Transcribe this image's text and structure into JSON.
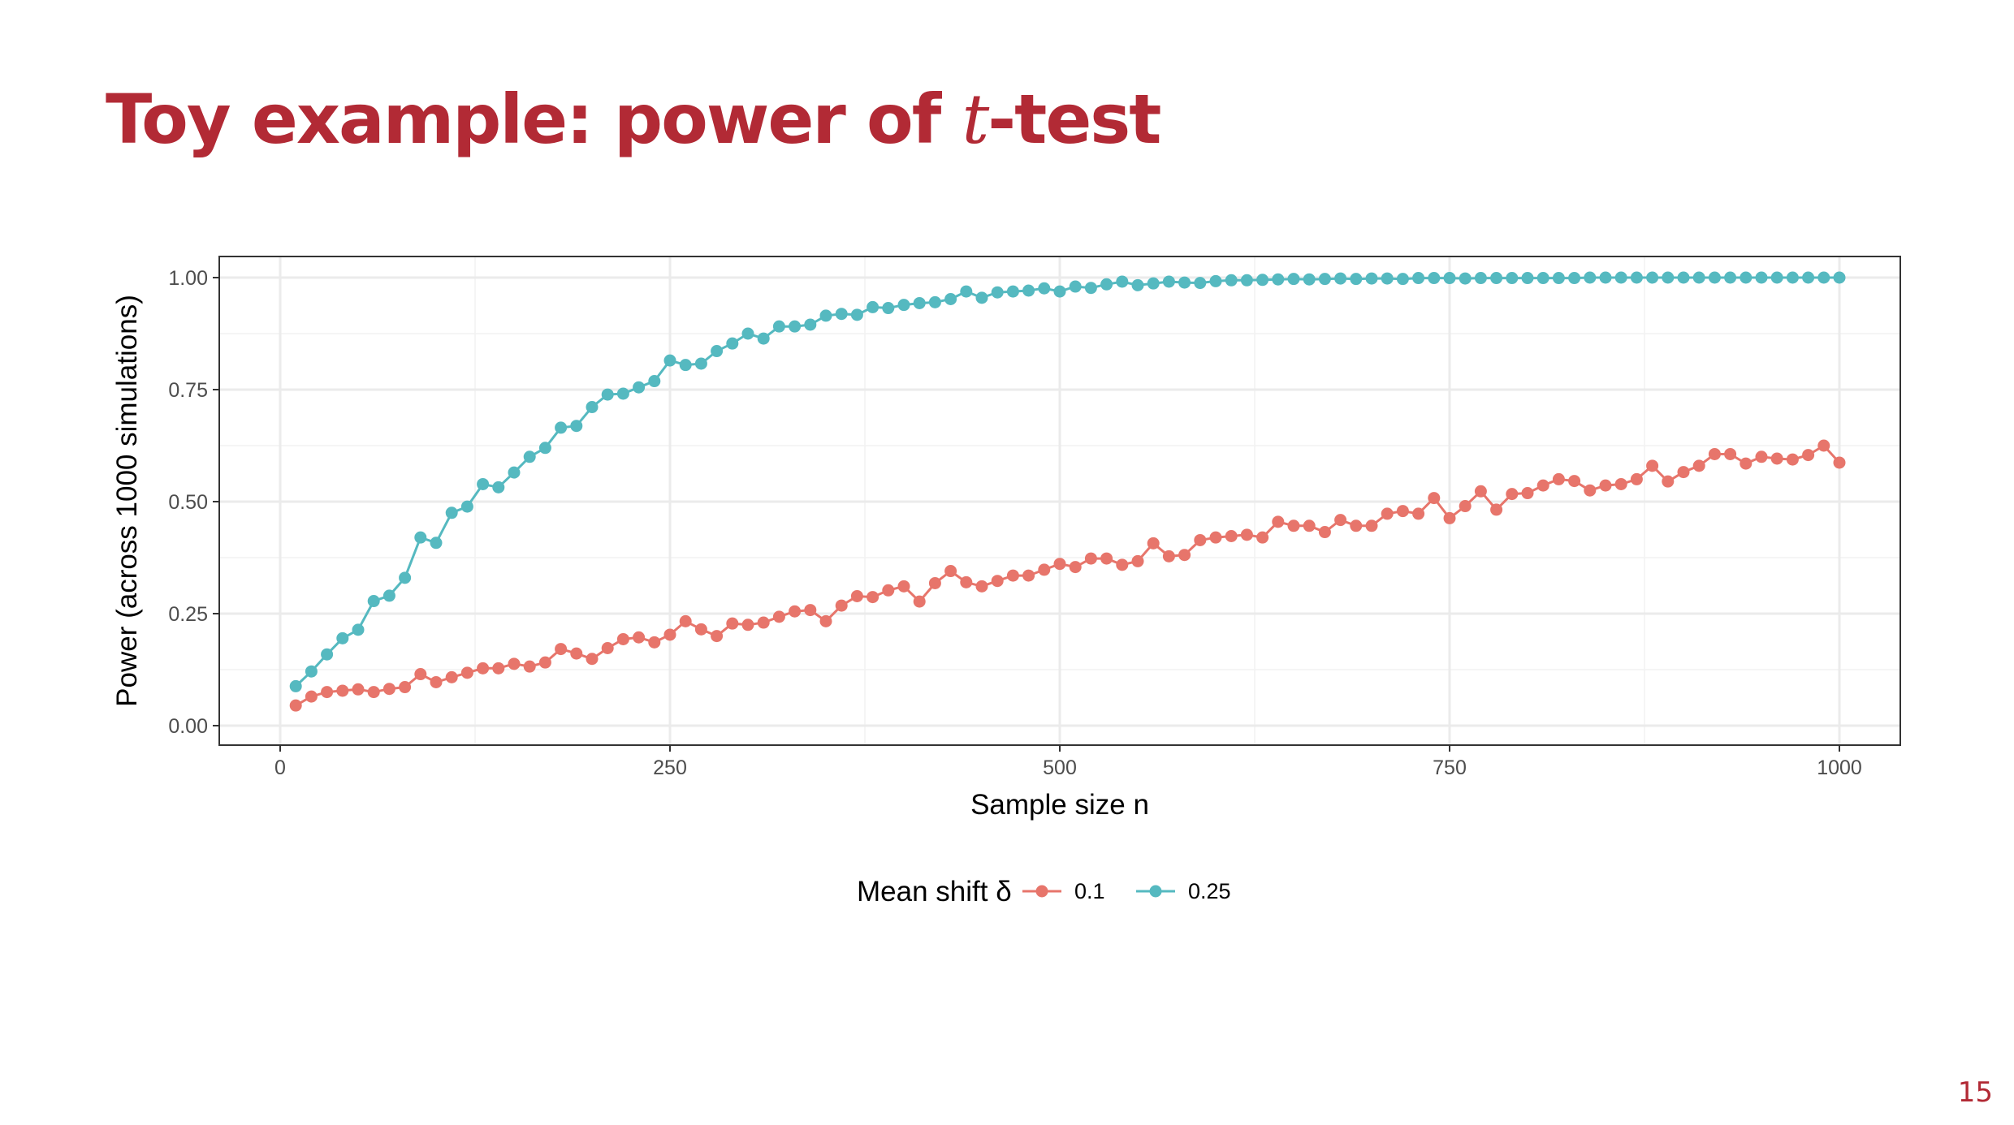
{
  "slide": {
    "title_prefix": "Toy example: power of ",
    "title_math": "t",
    "title_suffix": "-test",
    "page_number": "15",
    "title_color": "#b22a35"
  },
  "chart_data": {
    "type": "line",
    "xlabel": "Sample size n",
    "ylabel": "Power (across 1000 simulations)",
    "xlim": [
      0,
      1000
    ],
    "ylim": [
      0,
      1
    ],
    "x_ticks": [
      0,
      250,
      500,
      750,
      1000
    ],
    "x_tick_labels": [
      "0",
      "250",
      "500",
      "750",
      "1000"
    ],
    "y_ticks": [
      0,
      0.25,
      0.5,
      0.75,
      1
    ],
    "y_tick_labels": [
      "0.00",
      "0.25",
      "0.50",
      "0.75",
      "1.00"
    ],
    "grid": true,
    "legend": {
      "title": "Mean shift δ",
      "placement": "bottom"
    },
    "x": [
      10,
      20,
      30,
      40,
      50,
      60,
      70,
      80,
      90,
      100,
      110,
      120,
      130,
      140,
      150,
      160,
      170,
      180,
      190,
      200,
      210,
      220,
      230,
      240,
      250,
      260,
      270,
      280,
      290,
      300,
      310,
      320,
      330,
      340,
      350,
      360,
      370,
      380,
      390,
      400,
      410,
      420,
      430,
      440,
      450,
      460,
      470,
      480,
      490,
      500,
      510,
      520,
      530,
      540,
      550,
      560,
      570,
      580,
      590,
      600,
      610,
      620,
      630,
      640,
      650,
      660,
      670,
      680,
      690,
      700,
      710,
      720,
      730,
      740,
      750,
      760,
      770,
      780,
      790,
      800,
      810,
      820,
      830,
      840,
      850,
      860,
      870,
      880,
      890,
      900,
      910,
      920,
      930,
      940,
      950,
      960,
      970,
      980,
      990,
      1000
    ],
    "series": [
      {
        "name": "0.1",
        "color": "#e7756b",
        "values": [
          0.045,
          0.065,
          0.075,
          0.078,
          0.081,
          0.075,
          0.082,
          0.086,
          0.115,
          0.097,
          0.108,
          0.118,
          0.128,
          0.128,
          0.138,
          0.132,
          0.141,
          0.171,
          0.161,
          0.149,
          0.173,
          0.193,
          0.197,
          0.186,
          0.203,
          0.233,
          0.215,
          0.2,
          0.228,
          0.225,
          0.23,
          0.243,
          0.255,
          0.258,
          0.233,
          0.268,
          0.289,
          0.287,
          0.302,
          0.311,
          0.277,
          0.318,
          0.345,
          0.32,
          0.311,
          0.323,
          0.335,
          0.335,
          0.348,
          0.361,
          0.354,
          0.373,
          0.373,
          0.359,
          0.367,
          0.407,
          0.378,
          0.381,
          0.414,
          0.42,
          0.423,
          0.426,
          0.42,
          0.455,
          0.446,
          0.446,
          0.432,
          0.459,
          0.446,
          0.446,
          0.473,
          0.479,
          0.473,
          0.508,
          0.463,
          0.49,
          0.523,
          0.482,
          0.517,
          0.519,
          0.536,
          0.55,
          0.546,
          0.525,
          0.536,
          0.539,
          0.55,
          0.58,
          0.545,
          0.566,
          0.58,
          0.606,
          0.606,
          0.585,
          0.6,
          0.596,
          0.594,
          0.604,
          0.625,
          0.587
        ]
      },
      {
        "name": "0.25",
        "color": "#55b9c0",
        "values": [
          0.088,
          0.121,
          0.159,
          0.195,
          0.214,
          0.278,
          0.29,
          0.33,
          0.42,
          0.408,
          0.475,
          0.489,
          0.539,
          0.532,
          0.565,
          0.6,
          0.62,
          0.665,
          0.669,
          0.711,
          0.739,
          0.741,
          0.755,
          0.769,
          0.815,
          0.805,
          0.808,
          0.836,
          0.853,
          0.875,
          0.864,
          0.891,
          0.891,
          0.895,
          0.915,
          0.919,
          0.917,
          0.934,
          0.932,
          0.939,
          0.943,
          0.945,
          0.952,
          0.969,
          0.955,
          0.967,
          0.969,
          0.971,
          0.976,
          0.969,
          0.98,
          0.977,
          0.985,
          0.991,
          0.983,
          0.987,
          0.991,
          0.989,
          0.988,
          0.992,
          0.994,
          0.994,
          0.995,
          0.996,
          0.997,
          0.996,
          0.997,
          0.998,
          0.997,
          0.998,
          0.998,
          0.997,
          0.999,
          0.999,
          0.999,
          0.998,
          0.999,
          0.999,
          0.999,
          0.999,
          0.999,
          0.999,
          0.999,
          1.0,
          1.0,
          1.0,
          1.0,
          1.0,
          1.0,
          1.0,
          1.0,
          1.0,
          1.0,
          1.0,
          1.0,
          1.0,
          1.0,
          1.0,
          1.0,
          1.0
        ]
      }
    ]
  }
}
